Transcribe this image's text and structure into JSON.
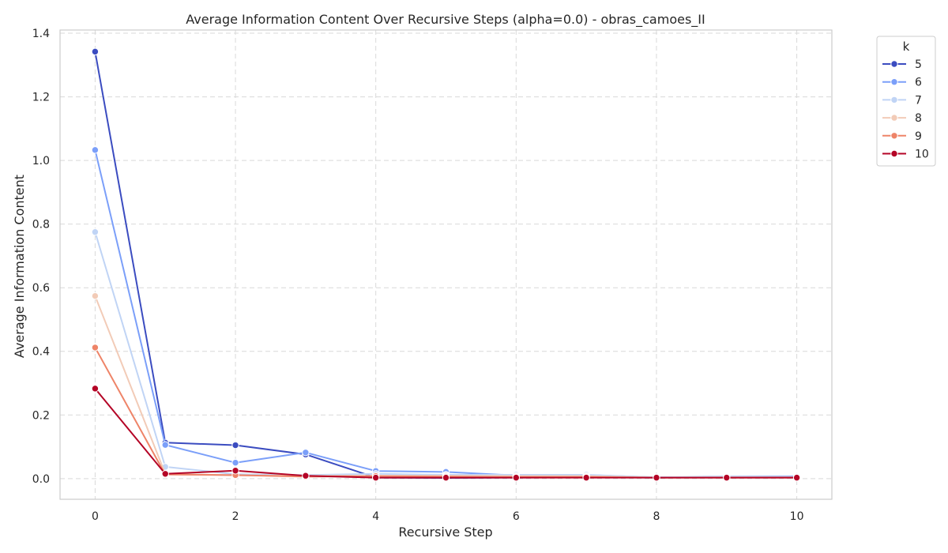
{
  "chart_data": {
    "type": "line",
    "title": "Average Information Content Over Recursive Steps (alpha=0.0) - obras_camoes_II",
    "xlabel": "Recursive Step",
    "ylabel": "Average Information Content",
    "xlim": [
      -0.5,
      10.5
    ],
    "ylim": [
      -0.065,
      1.41
    ],
    "xticks": [
      0,
      2,
      4,
      6,
      8,
      10
    ],
    "xtick_labels": [
      "0",
      "2",
      "4",
      "6",
      "8",
      "10"
    ],
    "yticks": [
      0.0,
      0.2,
      0.4,
      0.6,
      0.8,
      1.0,
      1.2,
      1.4
    ],
    "ytick_labels": [
      "0.0",
      "0.2",
      "0.4",
      "0.6",
      "0.8",
      "1.0",
      "1.2",
      "1.4"
    ],
    "grid": true,
    "legend": {
      "title": "k",
      "position": "outside-top-right"
    },
    "x": [
      0,
      1,
      2,
      3,
      4,
      5,
      6,
      7,
      8,
      9,
      10
    ],
    "series": [
      {
        "name": "5",
        "color": "#3b4cc0",
        "values": [
          1.342,
          0.113,
          0.105,
          0.076,
          0.003,
          0.002,
          0.003,
          0.004,
          0.003,
          0.005,
          0.005
        ]
      },
      {
        "name": "6",
        "color": "#7b9ff9",
        "values": [
          1.033,
          0.106,
          0.05,
          0.082,
          0.024,
          0.021,
          0.01,
          0.011,
          0.004,
          0.006,
          0.007
        ]
      },
      {
        "name": "7",
        "color": "#c0d4f5",
        "values": [
          0.775,
          0.037,
          0.014,
          0.011,
          0.015,
          0.012,
          0.012,
          0.012,
          0.004,
          0.005,
          0.005
        ]
      },
      {
        "name": "8",
        "color": "#f2cbb7",
        "values": [
          0.574,
          0.015,
          0.01,
          0.009,
          0.009,
          0.009,
          0.008,
          0.008,
          0.003,
          0.004,
          0.004
        ]
      },
      {
        "name": "9",
        "color": "#ee8468",
        "values": [
          0.412,
          0.013,
          0.011,
          0.006,
          0.008,
          0.006,
          0.005,
          0.005,
          0.003,
          0.003,
          0.003
        ]
      },
      {
        "name": "10",
        "color": "#b40426",
        "values": [
          0.283,
          0.015,
          0.025,
          0.009,
          0.003,
          0.003,
          0.003,
          0.003,
          0.003,
          0.003,
          0.003
        ]
      }
    ]
  }
}
